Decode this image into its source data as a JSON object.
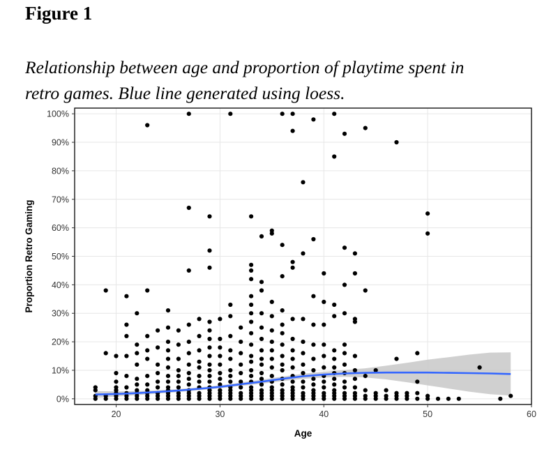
{
  "figure": {
    "label": "Figure 1",
    "caption_line1": "Relationship between age and proportion of playtime spent in",
    "caption_line2": "retro games. Blue line generated using loess."
  },
  "chart_data": {
    "type": "scatter",
    "title": "",
    "xlabel": "Age",
    "ylabel": "Proportion Retro Gaming",
    "xlim": [
      16,
      60
    ],
    "ylim": [
      -2,
      102
    ],
    "x_ticks": [
      20,
      30,
      40,
      50,
      60
    ],
    "y_ticks": [
      0,
      10,
      20,
      30,
      40,
      50,
      60,
      70,
      80,
      90,
      100
    ],
    "y_tick_labels": [
      "0%",
      "10%",
      "20%",
      "30%",
      "40%",
      "50%",
      "60%",
      "70%",
      "80%",
      "90%",
      "100%"
    ],
    "grid": true,
    "colors": {
      "points": "#000000",
      "loess_line": "#3366ff",
      "confidence_band": "#c8c8c8",
      "grid": "#e6e6e6",
      "frame": "#000000"
    },
    "points": [
      [
        18,
        0
      ],
      [
        18,
        1
      ],
      [
        18,
        3
      ],
      [
        18,
        4
      ],
      [
        19,
        0
      ],
      [
        19,
        1
      ],
      [
        19,
        16
      ],
      [
        19,
        38
      ],
      [
        20,
        0
      ],
      [
        20,
        1
      ],
      [
        20,
        2
      ],
      [
        20,
        3
      ],
      [
        20,
        4
      ],
      [
        20,
        6
      ],
      [
        20,
        9
      ],
      [
        20,
        15
      ],
      [
        21,
        0
      ],
      [
        21,
        1
      ],
      [
        21,
        2
      ],
      [
        21,
        4
      ],
      [
        21,
        8
      ],
      [
        21,
        15
      ],
      [
        21,
        22
      ],
      [
        21,
        26
      ],
      [
        21,
        36
      ],
      [
        22,
        0
      ],
      [
        22,
        1
      ],
      [
        22,
        2
      ],
      [
        22,
        3
      ],
      [
        22,
        5
      ],
      [
        22,
        7
      ],
      [
        22,
        12
      ],
      [
        22,
        16
      ],
      [
        22,
        19
      ],
      [
        22,
        30
      ],
      [
        23,
        0
      ],
      [
        23,
        1
      ],
      [
        23,
        2
      ],
      [
        23,
        3
      ],
      [
        23,
        5
      ],
      [
        23,
        8
      ],
      [
        23,
        14
      ],
      [
        23,
        17
      ],
      [
        23,
        22
      ],
      [
        23,
        38
      ],
      [
        23,
        96
      ],
      [
        24,
        0
      ],
      [
        24,
        1
      ],
      [
        24,
        2
      ],
      [
        24,
        4
      ],
      [
        24,
        6
      ],
      [
        24,
        9
      ],
      [
        24,
        12
      ],
      [
        24,
        18
      ],
      [
        24,
        24
      ],
      [
        25,
        0
      ],
      [
        25,
        1
      ],
      [
        25,
        2
      ],
      [
        25,
        3
      ],
      [
        25,
        4
      ],
      [
        25,
        6
      ],
      [
        25,
        8
      ],
      [
        25,
        11
      ],
      [
        25,
        14
      ],
      [
        25,
        17
      ],
      [
        25,
        20
      ],
      [
        25,
        25
      ],
      [
        25,
        31
      ],
      [
        26,
        0
      ],
      [
        26,
        1
      ],
      [
        26,
        2
      ],
      [
        26,
        4
      ],
      [
        26,
        6
      ],
      [
        26,
        8
      ],
      [
        26,
        10
      ],
      [
        26,
        14
      ],
      [
        26,
        19
      ],
      [
        26,
        24
      ],
      [
        27,
        0
      ],
      [
        27,
        1
      ],
      [
        27,
        2
      ],
      [
        27,
        3
      ],
      [
        27,
        5
      ],
      [
        27,
        7
      ],
      [
        27,
        9
      ],
      [
        27,
        12
      ],
      [
        27,
        16
      ],
      [
        27,
        20
      ],
      [
        27,
        26
      ],
      [
        27,
        45
      ],
      [
        27,
        67
      ],
      [
        27,
        100
      ],
      [
        28,
        0
      ],
      [
        28,
        1
      ],
      [
        28,
        2
      ],
      [
        28,
        4
      ],
      [
        28,
        6
      ],
      [
        28,
        8
      ],
      [
        28,
        11
      ],
      [
        28,
        13
      ],
      [
        28,
        17
      ],
      [
        28,
        22
      ],
      [
        28,
        28
      ],
      [
        29,
        0
      ],
      [
        29,
        1
      ],
      [
        29,
        2
      ],
      [
        29,
        3
      ],
      [
        29,
        4
      ],
      [
        29,
        6
      ],
      [
        29,
        8
      ],
      [
        29,
        10
      ],
      [
        29,
        12
      ],
      [
        29,
        15
      ],
      [
        29,
        18
      ],
      [
        29,
        21
      ],
      [
        29,
        24
      ],
      [
        29,
        27
      ],
      [
        29,
        46
      ],
      [
        29,
        52
      ],
      [
        29,
        64
      ],
      [
        30,
        0
      ],
      [
        30,
        1
      ],
      [
        30,
        2
      ],
      [
        30,
        3
      ],
      [
        30,
        5
      ],
      [
        30,
        7
      ],
      [
        30,
        9
      ],
      [
        30,
        12
      ],
      [
        30,
        15
      ],
      [
        30,
        18
      ],
      [
        30,
        21
      ],
      [
        30,
        28
      ],
      [
        31,
        0
      ],
      [
        31,
        1
      ],
      [
        31,
        2
      ],
      [
        31,
        3
      ],
      [
        31,
        4
      ],
      [
        31,
        6
      ],
      [
        31,
        8
      ],
      [
        31,
        10
      ],
      [
        31,
        14
      ],
      [
        31,
        17
      ],
      [
        31,
        22
      ],
      [
        31,
        29
      ],
      [
        31,
        33
      ],
      [
        31,
        100
      ],
      [
        32,
        0
      ],
      [
        32,
        1
      ],
      [
        32,
        2
      ],
      [
        32,
        4
      ],
      [
        32,
        6
      ],
      [
        32,
        9
      ],
      [
        32,
        12
      ],
      [
        32,
        16
      ],
      [
        32,
        20
      ],
      [
        32,
        25
      ],
      [
        33,
        0
      ],
      [
        33,
        1
      ],
      [
        33,
        2
      ],
      [
        33,
        3
      ],
      [
        33,
        4
      ],
      [
        33,
        6
      ],
      [
        33,
        8
      ],
      [
        33,
        10
      ],
      [
        33,
        13
      ],
      [
        33,
        15
      ],
      [
        33,
        19
      ],
      [
        33,
        23
      ],
      [
        33,
        27
      ],
      [
        33,
        30
      ],
      [
        33,
        33
      ],
      [
        33,
        36
      ],
      [
        33,
        42
      ],
      [
        33,
        45
      ],
      [
        33,
        47
      ],
      [
        33,
        64
      ],
      [
        34,
        0
      ],
      [
        34,
        1
      ],
      [
        34,
        2
      ],
      [
        34,
        3
      ],
      [
        34,
        5
      ],
      [
        34,
        7
      ],
      [
        34,
        9
      ],
      [
        34,
        12
      ],
      [
        34,
        14
      ],
      [
        34,
        17
      ],
      [
        34,
        21
      ],
      [
        34,
        25
      ],
      [
        34,
        30
      ],
      [
        34,
        38
      ],
      [
        34,
        41
      ],
      [
        34,
        57
      ],
      [
        35,
        0
      ],
      [
        35,
        1
      ],
      [
        35,
        2
      ],
      [
        35,
        3
      ],
      [
        35,
        4
      ],
      [
        35,
        6
      ],
      [
        35,
        8
      ],
      [
        35,
        11
      ],
      [
        35,
        14
      ],
      [
        35,
        17
      ],
      [
        35,
        20
      ],
      [
        35,
        24
      ],
      [
        35,
        29
      ],
      [
        35,
        34
      ],
      [
        35,
        58
      ],
      [
        35,
        59
      ],
      [
        36,
        0
      ],
      [
        36,
        1
      ],
      [
        36,
        2
      ],
      [
        36,
        3
      ],
      [
        36,
        5
      ],
      [
        36,
        7
      ],
      [
        36,
        10
      ],
      [
        36,
        12
      ],
      [
        36,
        15
      ],
      [
        36,
        19
      ],
      [
        36,
        23
      ],
      [
        36,
        26
      ],
      [
        36,
        31
      ],
      [
        36,
        43
      ],
      [
        36,
        54
      ],
      [
        36,
        100
      ],
      [
        37,
        0
      ],
      [
        37,
        1
      ],
      [
        37,
        2
      ],
      [
        37,
        3
      ],
      [
        37,
        4
      ],
      [
        37,
        6
      ],
      [
        37,
        8
      ],
      [
        37,
        11
      ],
      [
        37,
        14
      ],
      [
        37,
        17
      ],
      [
        37,
        21
      ],
      [
        37,
        28
      ],
      [
        37,
        46
      ],
      [
        37,
        48
      ],
      [
        37,
        94
      ],
      [
        37,
        100
      ],
      [
        38,
        0
      ],
      [
        38,
        1
      ],
      [
        38,
        2
      ],
      [
        38,
        4
      ],
      [
        38,
        6
      ],
      [
        38,
        9
      ],
      [
        38,
        12
      ],
      [
        38,
        16
      ],
      [
        38,
        20
      ],
      [
        38,
        28
      ],
      [
        38,
        51
      ],
      [
        38,
        76
      ],
      [
        39,
        0
      ],
      [
        39,
        1
      ],
      [
        39,
        2
      ],
      [
        39,
        3
      ],
      [
        39,
        5
      ],
      [
        39,
        7
      ],
      [
        39,
        10
      ],
      [
        39,
        14
      ],
      [
        39,
        19
      ],
      [
        39,
        26
      ],
      [
        39,
        36
      ],
      [
        39,
        56
      ],
      [
        39,
        98
      ],
      [
        40,
        0
      ],
      [
        40,
        1
      ],
      [
        40,
        2
      ],
      [
        40,
        4
      ],
      [
        40,
        6
      ],
      [
        40,
        8
      ],
      [
        40,
        11
      ],
      [
        40,
        15
      ],
      [
        40,
        19
      ],
      [
        40,
        26
      ],
      [
        40,
        34
      ],
      [
        40,
        44
      ],
      [
        41,
        0
      ],
      [
        41,
        1
      ],
      [
        41,
        2
      ],
      [
        41,
        3
      ],
      [
        41,
        5
      ],
      [
        41,
        7
      ],
      [
        41,
        9
      ],
      [
        41,
        11
      ],
      [
        41,
        14
      ],
      [
        41,
        17
      ],
      [
        41,
        29
      ],
      [
        41,
        33
      ],
      [
        41,
        85
      ],
      [
        41,
        100
      ],
      [
        42,
        0
      ],
      [
        42,
        1
      ],
      [
        42,
        2
      ],
      [
        42,
        4
      ],
      [
        42,
        6
      ],
      [
        42,
        9
      ],
      [
        42,
        12
      ],
      [
        42,
        16
      ],
      [
        42,
        19
      ],
      [
        42,
        30
      ],
      [
        42,
        40
      ],
      [
        42,
        53
      ],
      [
        42,
        93
      ],
      [
        43,
        0
      ],
      [
        43,
        1
      ],
      [
        43,
        2
      ],
      [
        43,
        4
      ],
      [
        43,
        7
      ],
      [
        43,
        10
      ],
      [
        43,
        15
      ],
      [
        43,
        27
      ],
      [
        43,
        28
      ],
      [
        43,
        44
      ],
      [
        43,
        51
      ],
      [
        44,
        0
      ],
      [
        44,
        1
      ],
      [
        44,
        3
      ],
      [
        44,
        8
      ],
      [
        44,
        38
      ],
      [
        44,
        95
      ],
      [
        45,
        0
      ],
      [
        45,
        1
      ],
      [
        45,
        2
      ],
      [
        45,
        10
      ],
      [
        46,
        0
      ],
      [
        46,
        1
      ],
      [
        46,
        3
      ],
      [
        47,
        0
      ],
      [
        47,
        1
      ],
      [
        47,
        2
      ],
      [
        47,
        14
      ],
      [
        47,
        90
      ],
      [
        48,
        0
      ],
      [
        48,
        1
      ],
      [
        48,
        2
      ],
      [
        49,
        0
      ],
      [
        49,
        2
      ],
      [
        49,
        6
      ],
      [
        49,
        16
      ],
      [
        50,
        0
      ],
      [
        50,
        1
      ],
      [
        50,
        58
      ],
      [
        50,
        65
      ],
      [
        51,
        0
      ],
      [
        52,
        0
      ],
      [
        53,
        0
      ],
      [
        55,
        11
      ],
      [
        57,
        0
      ],
      [
        58,
        1
      ]
    ],
    "loess": {
      "x": [
        18,
        20,
        22,
        24,
        26,
        28,
        30,
        32,
        34,
        36,
        38,
        40,
        42,
        44,
        46,
        48,
        50,
        52,
        54,
        56,
        58
      ],
      "y": [
        1.5,
        1.7,
        2.0,
        2.4,
        2.9,
        3.5,
        4.2,
        5.1,
        6.0,
        7.0,
        7.9,
        8.5,
        8.9,
        9.1,
        9.2,
        9.2,
        9.2,
        9.1,
        9.0,
        8.9,
        8.7
      ],
      "ci_lower": [
        0.3,
        0.8,
        1.3,
        1.8,
        2.4,
        3.0,
        3.7,
        4.5,
        5.3,
        6.2,
        7.0,
        7.5,
        7.7,
        7.5,
        6.8,
        5.8,
        4.7,
        3.6,
        2.5,
        1.6,
        1.1
      ],
      "ci_upper": [
        2.7,
        2.6,
        2.7,
        3.0,
        3.4,
        4.0,
        4.7,
        5.7,
        6.7,
        7.8,
        8.8,
        9.5,
        10.1,
        10.7,
        11.6,
        12.6,
        13.7,
        14.6,
        15.5,
        16.2,
        16.3
      ]
    }
  }
}
